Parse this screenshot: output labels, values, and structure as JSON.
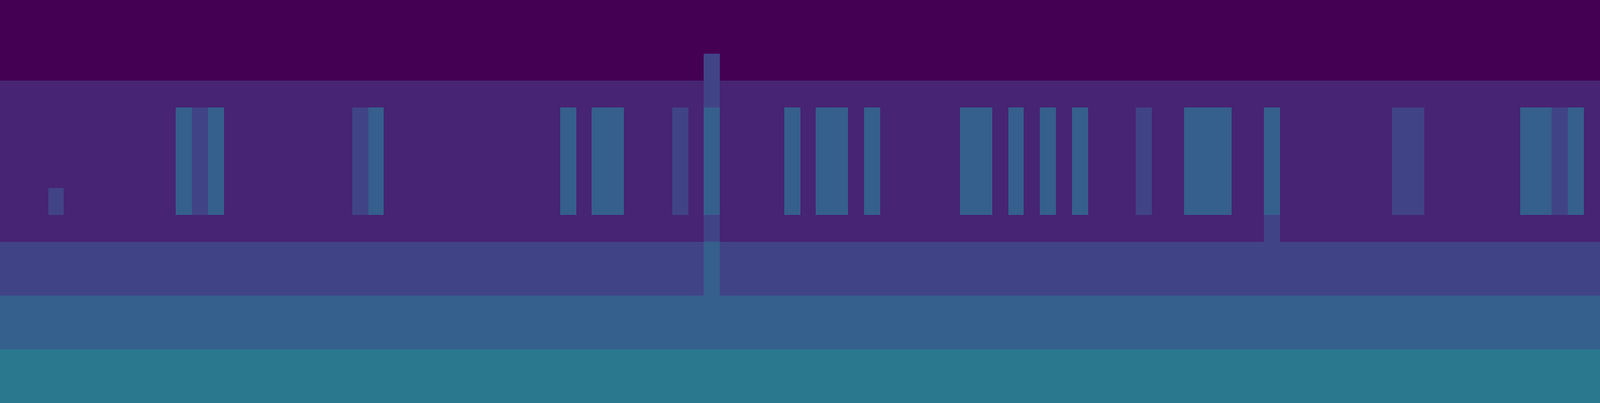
{
  "chart_data": {
    "type": "heatmap",
    "color": "Viridis",
    "zlim": [
      0,
      10
    ],
    "grid": false,
    "tick_labels": false,
    "cells": [
      [
        0,
        0,
        0,
        0,
        0,
        0,
        0,
        0,
        0,
        0,
        0,
        0,
        0,
        0,
        0,
        0,
        0,
        0,
        0,
        0,
        0,
        0,
        0,
        0,
        0,
        0,
        0,
        0,
        0,
        0,
        0,
        0,
        0,
        0,
        0,
        0,
        0,
        0,
        0,
        0,
        0,
        0,
        0,
        0,
        0,
        0,
        0,
        0,
        0,
        0,
        0,
        0,
        0,
        0,
        0,
        0,
        0,
        0,
        0,
        0,
        0,
        0,
        0,
        0,
        0,
        0,
        0,
        0,
        0,
        0,
        0,
        0,
        0,
        0,
        0,
        0,
        0,
        0,
        0,
        0,
        0,
        0,
        0,
        0,
        0,
        0,
        0,
        0,
        0,
        0,
        0,
        0,
        0,
        0,
        0,
        0,
        0,
        0,
        0,
        0
      ],
      [
        0,
        0,
        0,
        0,
        0,
        0,
        0,
        0,
        0,
        0,
        0,
        0,
        0,
        0,
        0,
        0,
        0,
        0,
        0,
        0,
        0,
        0,
        0,
        0,
        0,
        0,
        0,
        0,
        0,
        0,
        0,
        0,
        0,
        0,
        0,
        0,
        0,
        0,
        0,
        0,
        0,
        0,
        0,
        0,
        0,
        0,
        0,
        0,
        0,
        0,
        0,
        0,
        0,
        0,
        0,
        0,
        0,
        0,
        0,
        0,
        0,
        0,
        0,
        0,
        0,
        0,
        0,
        0,
        0,
        0,
        0,
        0,
        0,
        0,
        0,
        0,
        0,
        0,
        0,
        0,
        0,
        0,
        0,
        0,
        0,
        0,
        0,
        0,
        0,
        0,
        0,
        0,
        0,
        0,
        0,
        0,
        0,
        0,
        0,
        0
      ],
      [
        0,
        0,
        0,
        0,
        0,
        0,
        0,
        0,
        0,
        0,
        0,
        0,
        0,
        0,
        0,
        0,
        0,
        0,
        0,
        0,
        0,
        0,
        0,
        0,
        0,
        0,
        0,
        0,
        0,
        0,
        0,
        0,
        0,
        0,
        0,
        0,
        0,
        0,
        0,
        0,
        0,
        0,
        0,
        0,
        2,
        0,
        0,
        0,
        0,
        0,
        0,
        0,
        0,
        0,
        0,
        0,
        0,
        0,
        0,
        0,
        0,
        0,
        0,
        0,
        0,
        0,
        0,
        0,
        0,
        0,
        0,
        0,
        0,
        0,
        0,
        0,
        0,
        0,
        0,
        0,
        0,
        0,
        0,
        0,
        0,
        0,
        0,
        0,
        0,
        0,
        0,
        0,
        0,
        0,
        0,
        0,
        0,
        0,
        0,
        0
      ],
      [
        1,
        1,
        1,
        1,
        1,
        1,
        1,
        1,
        1,
        1,
        1,
        1,
        1,
        1,
        1,
        1,
        1,
        1,
        1,
        1,
        1,
        1,
        1,
        1,
        1,
        1,
        1,
        1,
        1,
        1,
        1,
        1,
        1,
        1,
        1,
        1,
        1,
        1,
        1,
        1,
        1,
        1,
        1,
        1,
        2,
        1,
        1,
        1,
        1,
        1,
        1,
        1,
        1,
        1,
        1,
        1,
        1,
        1,
        1,
        1,
        1,
        1,
        1,
        1,
        1,
        1,
        1,
        1,
        1,
        1,
        1,
        1,
        1,
        1,
        1,
        1,
        1,
        1,
        1,
        1,
        1,
        1,
        1,
        1,
        1,
        1,
        1,
        1,
        1,
        1,
        1,
        1,
        1,
        1,
        1,
        1,
        1,
        1,
        1,
        1
      ],
      [
        1,
        1,
        1,
        1,
        1,
        1,
        1,
        1,
        1,
        1,
        1,
        3,
        2,
        3,
        1,
        1,
        1,
        1,
        1,
        1,
        1,
        1,
        2,
        3,
        1,
        1,
        1,
        1,
        1,
        1,
        1,
        1,
        1,
        1,
        1,
        3,
        1,
        3,
        3,
        1,
        1,
        1,
        2,
        1,
        3,
        1,
        1,
        1,
        1,
        3,
        1,
        3,
        3,
        1,
        3,
        1,
        1,
        1,
        1,
        1,
        3,
        3,
        1,
        3,
        1,
        3,
        1,
        3,
        1,
        1,
        1,
        2,
        1,
        1,
        3,
        3,
        3,
        1,
        1,
        3,
        1,
        1,
        1,
        1,
        1,
        1,
        1,
        2,
        2,
        1,
        1,
        1,
        1,
        1,
        1,
        3,
        3,
        2,
        3,
        1
      ],
      [
        1,
        1,
        1,
        1,
        1,
        1,
        1,
        1,
        1,
        1,
        1,
        3,
        2,
        3,
        1,
        1,
        1,
        1,
        1,
        1,
        1,
        1,
        2,
        3,
        1,
        1,
        1,
        1,
        1,
        1,
        1,
        1,
        1,
        1,
        1,
        3,
        1,
        3,
        3,
        1,
        1,
        1,
        2,
        1,
        3,
        1,
        1,
        1,
        1,
        3,
        1,
        3,
        3,
        1,
        3,
        1,
        1,
        1,
        1,
        1,
        3,
        3,
        1,
        3,
        1,
        3,
        1,
        3,
        1,
        1,
        1,
        2,
        1,
        1,
        3,
        3,
        3,
        1,
        1,
        3,
        1,
        1,
        1,
        1,
        1,
        1,
        1,
        2,
        2,
        1,
        1,
        1,
        1,
        1,
        1,
        3,
        3,
        2,
        3,
        1
      ],
      [
        1,
        1,
        1,
        1,
        1,
        1,
        1,
        1,
        1,
        1,
        1,
        3,
        2,
        3,
        1,
        1,
        1,
        1,
        1,
        1,
        1,
        1,
        2,
        3,
        1,
        1,
        1,
        1,
        1,
        1,
        1,
        1,
        1,
        1,
        1,
        3,
        1,
        3,
        3,
        1,
        1,
        1,
        2,
        1,
        3,
        1,
        1,
        1,
        1,
        3,
        1,
        3,
        3,
        1,
        3,
        1,
        1,
        1,
        1,
        1,
        3,
        3,
        1,
        3,
        1,
        3,
        1,
        3,
        1,
        1,
        1,
        2,
        1,
        1,
        3,
        3,
        3,
        1,
        1,
        3,
        1,
        1,
        1,
        1,
        1,
        1,
        1,
        2,
        2,
        1,
        1,
        1,
        1,
        1,
        1,
        3,
        3,
        2,
        3,
        1
      ],
      [
        1,
        1,
        1,
        2,
        1,
        1,
        1,
        1,
        1,
        1,
        1,
        3,
        2,
        3,
        1,
        1,
        1,
        1,
        1,
        1,
        1,
        1,
        2,
        3,
        1,
        1,
        1,
        1,
        1,
        1,
        1,
        1,
        1,
        1,
        1,
        3,
        1,
        3,
        3,
        1,
        1,
        1,
        2,
        1,
        3,
        1,
        1,
        1,
        1,
        3,
        1,
        3,
        3,
        1,
        3,
        1,
        1,
        1,
        1,
        1,
        3,
        3,
        1,
        3,
        1,
        3,
        1,
        3,
        1,
        1,
        1,
        2,
        1,
        1,
        3,
        3,
        3,
        1,
        1,
        3,
        1,
        1,
        1,
        1,
        1,
        1,
        1,
        2,
        2,
        1,
        1,
        1,
        1,
        1,
        1,
        3,
        3,
        2,
        3,
        1
      ],
      [
        1,
        1,
        1,
        1,
        1,
        1,
        1,
        1,
        1,
        1,
        1,
        1,
        1,
        1,
        1,
        1,
        1,
        1,
        1,
        1,
        1,
        1,
        1,
        1,
        1,
        1,
        1,
        1,
        1,
        1,
        1,
        1,
        1,
        1,
        1,
        1,
        1,
        1,
        1,
        1,
        1,
        1,
        1,
        1,
        2,
        1,
        1,
        1,
        1,
        1,
        1,
        1,
        1,
        1,
        1,
        1,
        1,
        1,
        1,
        1,
        1,
        1,
        1,
        1,
        1,
        1,
        1,
        1,
        1,
        1,
        1,
        1,
        1,
        1,
        1,
        1,
        1,
        1,
        1,
        2,
        1,
        1,
        1,
        1,
        1,
        1,
        1,
        1,
        1,
        1,
        1,
        1,
        1,
        1,
        1,
        1,
        1,
        1,
        1,
        1
      ],
      [
        2,
        2,
        2,
        2,
        2,
        2,
        2,
        2,
        2,
        2,
        2,
        2,
        2,
        2,
        2,
        2,
        2,
        2,
        2,
        2,
        2,
        2,
        2,
        2,
        2,
        2,
        2,
        2,
        2,
        2,
        2,
        2,
        2,
        2,
        2,
        2,
        2,
        2,
        2,
        2,
        2,
        2,
        2,
        2,
        3,
        2,
        2,
        2,
        2,
        2,
        2,
        2,
        2,
        2,
        2,
        2,
        2,
        2,
        2,
        2,
        2,
        2,
        2,
        2,
        2,
        2,
        2,
        2,
        2,
        2,
        2,
        2,
        2,
        2,
        2,
        2,
        2,
        2,
        2,
        2,
        2,
        2,
        2,
        2,
        2,
        2,
        2,
        2,
        2,
        2,
        2,
        2,
        2,
        2,
        2,
        2,
        2,
        2,
        2,
        2
      ],
      [
        2,
        2,
        2,
        2,
        2,
        2,
        2,
        2,
        2,
        2,
        2,
        2,
        2,
        2,
        2,
        2,
        2,
        2,
        2,
        2,
        2,
        2,
        2,
        2,
        2,
        2,
        2,
        2,
        2,
        2,
        2,
        2,
        2,
        2,
        2,
        2,
        2,
        2,
        2,
        2,
        2,
        2,
        2,
        2,
        3,
        2,
        2,
        2,
        2,
        2,
        2,
        2,
        2,
        2,
        2,
        2,
        2,
        2,
        2,
        2,
        2,
        2,
        2,
        2,
        2,
        2,
        2,
        2,
        2,
        2,
        2,
        2,
        2,
        2,
        2,
        2,
        2,
        2,
        2,
        2,
        2,
        2,
        2,
        2,
        2,
        2,
        2,
        2,
        2,
        2,
        2,
        2,
        2,
        2,
        2,
        2,
        2,
        2,
        2,
        2
      ],
      [
        3,
        3,
        3,
        3,
        3,
        3,
        3,
        3,
        3,
        3,
        3,
        3,
        3,
        3,
        3,
        3,
        3,
        3,
        3,
        3,
        3,
        3,
        3,
        3,
        3,
        3,
        3,
        3,
        3,
        3,
        3,
        3,
        3,
        3,
        3,
        3,
        3,
        3,
        3,
        3,
        3,
        3,
        3,
        3,
        3,
        3,
        3,
        3,
        3,
        3,
        3,
        3,
        3,
        3,
        3,
        3,
        3,
        3,
        3,
        3,
        3,
        3,
        3,
        3,
        3,
        3,
        3,
        3,
        3,
        3,
        3,
        3,
        3,
        3,
        3,
        3,
        3,
        3,
        3,
        3,
        3,
        3,
        3,
        3,
        3,
        3,
        3,
        3,
        3,
        3,
        3,
        3,
        3,
        3,
        3,
        3,
        3,
        3,
        3,
        3
      ],
      [
        3,
        3,
        3,
        3,
        3,
        3,
        3,
        3,
        3,
        3,
        3,
        3,
        3,
        3,
        3,
        3,
        3,
        3,
        3,
        3,
        3,
        3,
        3,
        3,
        3,
        3,
        3,
        3,
        3,
        3,
        3,
        3,
        3,
        3,
        3,
        3,
        3,
        3,
        3,
        3,
        3,
        3,
        3,
        3,
        3,
        3,
        3,
        3,
        3,
        3,
        3,
        3,
        3,
        3,
        3,
        3,
        3,
        3,
        3,
        3,
        3,
        3,
        3,
        3,
        3,
        3,
        3,
        3,
        3,
        3,
        3,
        3,
        3,
        3,
        3,
        3,
        3,
        3,
        3,
        3,
        3,
        3,
        3,
        3,
        3,
        3,
        3,
        3,
        3,
        3,
        3,
        3,
        3,
        3,
        3,
        3,
        3,
        3,
        3,
        3
      ],
      [
        4,
        4,
        4,
        4,
        4,
        4,
        4,
        4,
        4,
        4,
        4,
        4,
        4,
        4,
        4,
        4,
        4,
        4,
        4,
        4,
        4,
        4,
        4,
        4,
        4,
        4,
        4,
        4,
        4,
        4,
        4,
        4,
        4,
        4,
        4,
        4,
        4,
        4,
        4,
        4,
        4,
        4,
        4,
        4,
        4,
        4,
        4,
        4,
        4,
        4,
        4,
        4,
        4,
        4,
        4,
        4,
        4,
        4,
        4,
        4,
        4,
        4,
        4,
        4,
        4,
        4,
        4,
        4,
        4,
        4,
        4,
        4,
        4,
        4,
        4,
        4,
        4,
        4,
        4,
        4,
        4,
        4,
        4,
        4,
        4,
        4,
        4,
        4,
        4,
        4,
        4,
        4,
        4,
        4,
        4,
        4,
        4,
        4,
        4,
        4
      ],
      [
        4,
        4,
        4,
        4,
        4,
        4,
        4,
        4,
        4,
        4,
        4,
        4,
        4,
        4,
        4,
        4,
        4,
        4,
        4,
        4,
        4,
        4,
        4,
        4,
        4,
        4,
        4,
        4,
        4,
        4,
        4,
        4,
        4,
        4,
        4,
        4,
        4,
        4,
        4,
        4,
        4,
        4,
        4,
        4,
        4,
        4,
        4,
        4,
        4,
        4,
        4,
        4,
        4,
        4,
        4,
        4,
        4,
        4,
        4,
        4,
        4,
        4,
        4,
        4,
        4,
        4,
        4,
        4,
        4,
        4,
        4,
        4,
        4,
        4,
        4,
        4,
        4,
        4,
        4,
        4,
        4,
        4,
        4,
        4,
        4,
        4,
        4,
        4,
        4,
        4,
        4,
        4,
        4,
        4,
        4,
        4,
        4,
        4,
        4,
        4
      ]
    ]
  }
}
